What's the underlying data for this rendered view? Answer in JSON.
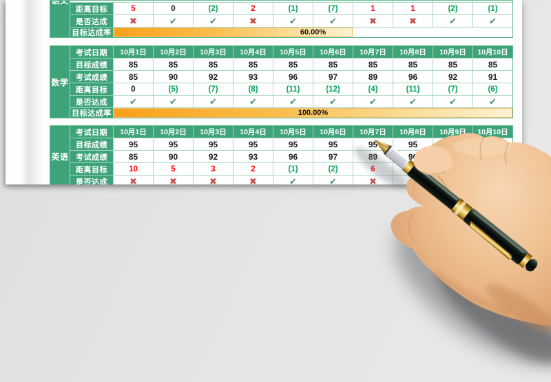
{
  "colors": {
    "header_green": "#3FA37A",
    "grid_line": "#A6D6BE",
    "outer_border": "#62B98E",
    "bar_orange": "#F9A11B",
    "bar_orange_pale": "#FDF2D2",
    "delta_positive_red": "#FE0000",
    "delta_negative_green": "#00A550",
    "check_green": "#44936C",
    "cross_red": "#C14F49"
  },
  "icons": {
    "check": "✔",
    "cross": "✖"
  },
  "tables": [
    {
      "id": "yuwen",
      "section_label": "语文",
      "clipped_top": true,
      "rows": [
        {
          "label": "距离目标",
          "type": "delta",
          "values": [
            "5",
            "0",
            "(2)",
            "2",
            "(1)",
            "(7)",
            "1",
            "1",
            "(2)",
            "(1)"
          ]
        },
        {
          "label": "是否达成",
          "type": "status",
          "values": [
            "cross",
            "check",
            "check",
            "cross",
            "check",
            "check",
            "cross",
            "cross",
            "check",
            "check"
          ]
        }
      ],
      "rate": {
        "label": "目标达成率",
        "value": "60.00%",
        "percent": 60
      }
    },
    {
      "id": "shuxue",
      "section_label": "数学",
      "clipped_top": false,
      "rows": [
        {
          "label": "考试日期",
          "type": "dates",
          "values": [
            "10月1日",
            "10月2日",
            "10月3日",
            "10月4日",
            "10月5日",
            "10月6日",
            "10月7日",
            "10月8日",
            "10月9日",
            "10月10日"
          ]
        },
        {
          "label": "目标成绩",
          "type": "number",
          "values": [
            "85",
            "85",
            "85",
            "85",
            "85",
            "85",
            "85",
            "85",
            "85",
            "85"
          ]
        },
        {
          "label": "考试成绩",
          "type": "number",
          "values": [
            "85",
            "90",
            "92",
            "93",
            "96",
            "97",
            "89",
            "96",
            "92",
            "91"
          ]
        },
        {
          "label": "距离目标",
          "type": "delta",
          "values": [
            "0",
            "(5)",
            "(7)",
            "(8)",
            "(11)",
            "(12)",
            "(4)",
            "(11)",
            "(7)",
            "(6)"
          ]
        },
        {
          "label": "是否达成",
          "type": "status",
          "values": [
            "check",
            "check",
            "check",
            "check",
            "check",
            "check",
            "check",
            "check",
            "check",
            "check"
          ]
        }
      ],
      "rate": {
        "label": "目标达成率",
        "value": "100.00%",
        "percent": 100
      }
    },
    {
      "id": "yingyu",
      "section_label": "英语",
      "clipped_top": false,
      "rows": [
        {
          "label": "考试日期",
          "type": "dates",
          "values": [
            "10月1日",
            "10月2日",
            "10月3日",
            "10月4日",
            "10月5日",
            "10月6日",
            "10月7日",
            "10月8日",
            "10月9日",
            "10月10日"
          ]
        },
        {
          "label": "目标成绩",
          "type": "number",
          "values": [
            "95",
            "95",
            "95",
            "95",
            "95",
            "95",
            "95",
            "95",
            "",
            ""
          ]
        },
        {
          "label": "考试成绩",
          "type": "number",
          "values": [
            "85",
            "90",
            "92",
            "93",
            "96",
            "97",
            "89",
            "96",
            "",
            ""
          ]
        },
        {
          "label": "距离目标",
          "type": "delta",
          "values": [
            "10",
            "5",
            "3",
            "2",
            "(1)",
            "(2)",
            "6",
            "",
            "",
            ""
          ]
        },
        {
          "label": "是否达成",
          "type": "status",
          "values": [
            "cross",
            "cross",
            "cross",
            "cross",
            "check",
            "check",
            "cross",
            "",
            "",
            ""
          ]
        }
      ],
      "rate": null
    }
  ]
}
